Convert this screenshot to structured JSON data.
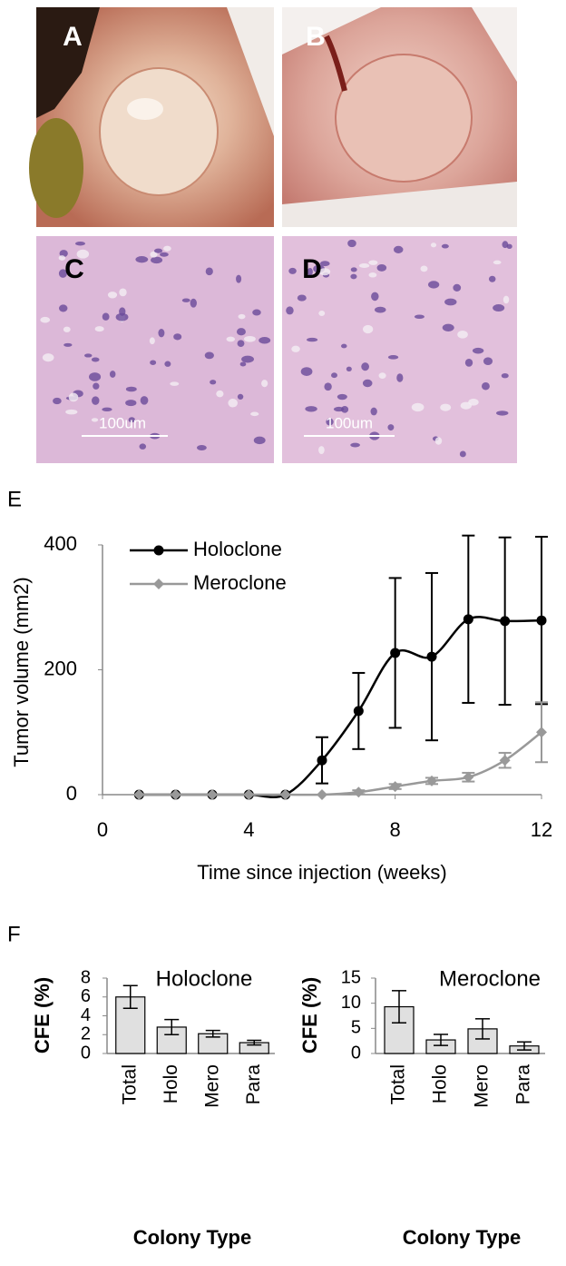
{
  "photos": [
    {
      "label": "A"
    },
    {
      "label": "B"
    },
    {
      "label": "C",
      "scale_bar": "100um"
    },
    {
      "label": "D",
      "scale_bar": "100um"
    }
  ],
  "chart_data": [
    {
      "type": "line",
      "panel_label": "E",
      "x_label": "Time since injection (weeks)",
      "y_label": "Tumor volume (mm2)",
      "x": [
        1,
        2,
        3,
        4,
        5,
        6,
        7,
        8,
        9,
        10,
        11,
        12
      ],
      "series": [
        {
          "name": "Holoclone",
          "color": "#000000",
          "marker": "circle",
          "values": [
            0,
            0,
            0,
            0,
            0,
            55,
            134,
            227,
            221,
            281,
            278,
            279
          ],
          "errors": [
            0,
            0,
            0,
            0,
            0,
            37,
            61,
            120,
            134,
            134,
            134,
            134
          ]
        },
        {
          "name": "Meroclone",
          "color": "#999999",
          "marker": "diamond",
          "values": [
            0,
            0,
            0,
            0,
            0,
            0,
            4,
            13,
            22,
            28,
            55,
            100
          ],
          "errors": [
            0,
            0,
            0,
            0,
            0,
            0,
            3,
            4,
            5,
            7,
            12,
            48
          ]
        }
      ],
      "xlim": [
        0,
        12
      ],
      "xticks": [
        0,
        4,
        8,
        12
      ],
      "ylim": [
        0,
        400
      ],
      "yticks": [
        0,
        200,
        400
      ],
      "legend": "top-left"
    },
    {
      "type": "bar",
      "panel_label": "F",
      "title": "Holoclone",
      "x_label": "Colony Type",
      "y_label": "CFE (%)",
      "categories": [
        "Total",
        "Holo",
        "Mero",
        "Para"
      ],
      "values": [
        6.0,
        2.8,
        2.1,
        1.15
      ],
      "errors": [
        1.2,
        0.8,
        0.35,
        0.25
      ],
      "color": "#e0e0e0",
      "ylim": [
        0,
        8
      ],
      "yticks": [
        0,
        2,
        4,
        6,
        8
      ]
    },
    {
      "type": "bar",
      "title": "Meroclone",
      "x_label": "Colony Type",
      "y_label": "CFE (%)",
      "categories": [
        "Total",
        "Holo",
        "Mero",
        "Para"
      ],
      "values": [
        9.3,
        2.7,
        4.9,
        1.5
      ],
      "errors": [
        3.2,
        1.1,
        2.0,
        0.8
      ],
      "color": "#e0e0e0",
      "ylim": [
        0,
        15
      ],
      "yticks": [
        0,
        5,
        10,
        15
      ]
    }
  ]
}
